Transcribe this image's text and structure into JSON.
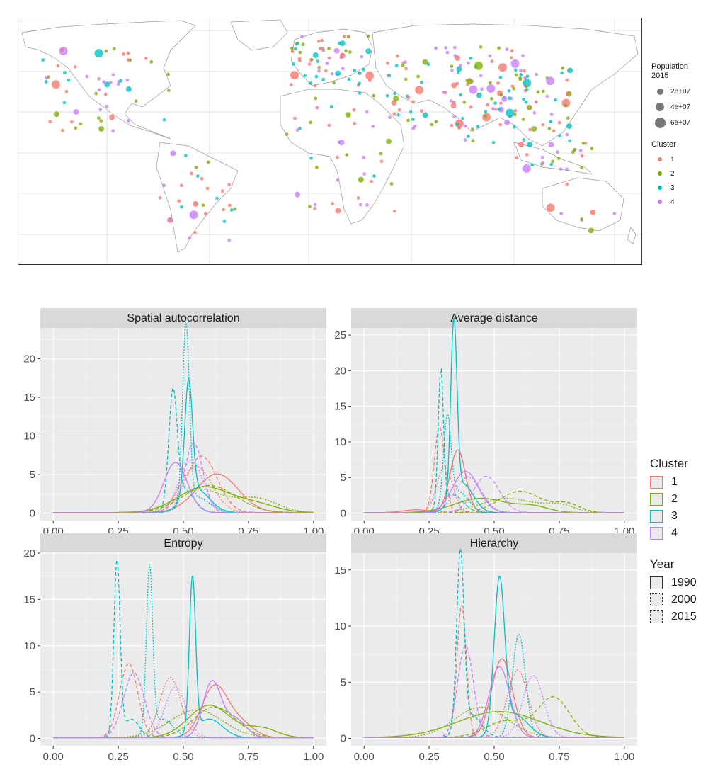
{
  "map": {
    "legend_population": {
      "title": "Population\n2015",
      "items": [
        {
          "label": "2e+07",
          "value": 20000000
        },
        {
          "label": "4e+07",
          "value": 40000000
        },
        {
          "label": "6e+07",
          "value": 60000000
        }
      ]
    },
    "legend_cluster": {
      "title": "Cluster",
      "items": [
        {
          "label": "1",
          "color": "#F8766D"
        },
        {
          "label": "2",
          "color": "#7CAE00"
        },
        {
          "label": "3",
          "color": "#00BFC4"
        },
        {
          "label": "4",
          "color": "#C77CFF"
        }
      ]
    }
  },
  "legend": {
    "cluster_title": "Cluster",
    "clusters": [
      {
        "label": "1",
        "color": "#F8766D"
      },
      {
        "label": "2",
        "color": "#7CAE00"
      },
      {
        "label": "3",
        "color": "#00BFC4"
      },
      {
        "label": "4",
        "color": "#C77CFF"
      }
    ],
    "year_title": "Year",
    "years": [
      {
        "label": "1990",
        "linetype": "solid"
      },
      {
        "label": "2000",
        "linetype": "dotted"
      },
      {
        "label": "2015",
        "linetype": "dashed"
      }
    ]
  },
  "chart_data": [
    {
      "type": "line",
      "title": "Spatial autocorrelation",
      "xlim": [
        0,
        1
      ],
      "ylim": [
        0,
        24
      ],
      "x_ticks": [
        "0.00",
        "0.25",
        "0.50",
        "0.75",
        "1.00"
      ],
      "y_ticks": [
        "0",
        "5",
        "10",
        "15",
        "20"
      ],
      "curves": [
        {
          "cluster": 1,
          "year": "1990",
          "peaks": [
            [
              0.63,
              5.0,
              0.08
            ]
          ]
        },
        {
          "cluster": 1,
          "year": "2000",
          "peaks": [
            [
              0.55,
              6.0,
              0.06
            ]
          ]
        },
        {
          "cluster": 1,
          "year": "2015",
          "peaks": [
            [
              0.57,
              7.3,
              0.06
            ]
          ]
        },
        {
          "cluster": 2,
          "year": "1990",
          "peaks": [
            [
              0.58,
              3.3,
              0.1
            ],
            [
              0.78,
              1.0,
              0.08
            ]
          ]
        },
        {
          "cluster": 2,
          "year": "2000",
          "peaks": [
            [
              0.56,
              3.0,
              0.09
            ],
            [
              0.78,
              1.8,
              0.08
            ]
          ]
        },
        {
          "cluster": 2,
          "year": "2015",
          "peaks": [
            [
              0.6,
              3.5,
              0.1
            ]
          ]
        },
        {
          "cluster": 3,
          "year": "1990",
          "peaks": [
            [
              0.52,
              14.8,
              0.015
            ],
            [
              0.55,
              3.0,
              0.05
            ]
          ]
        },
        {
          "cluster": 3,
          "year": "2000",
          "peaks": [
            [
              0.51,
              23.3,
              0.013
            ],
            [
              0.55,
              2.0,
              0.05
            ]
          ]
        },
        {
          "cluster": 3,
          "year": "2015",
          "peaks": [
            [
              0.46,
              14.3,
              0.016
            ],
            [
              0.5,
              3.0,
              0.04
            ]
          ]
        },
        {
          "cluster": 4,
          "year": "1990",
          "peaks": [
            [
              0.47,
              6.5,
              0.045
            ]
          ]
        },
        {
          "cluster": 4,
          "year": "2000",
          "peaks": [
            [
              0.53,
              6.8,
              0.045
            ]
          ]
        },
        {
          "cluster": 4,
          "year": "2015",
          "peaks": [
            [
              0.54,
              9.0,
              0.035
            ]
          ]
        }
      ]
    },
    {
      "type": "line",
      "title": "Average distance",
      "xlim": [
        0,
        1
      ],
      "ylim": [
        0,
        26
      ],
      "x_ticks": [
        "0.00",
        "0.25",
        "0.50",
        "0.75",
        "1.00"
      ],
      "y_ticks": [
        "0",
        "5",
        "10",
        "15",
        "20",
        "25"
      ],
      "curves": [
        {
          "cluster": 1,
          "year": "1990",
          "peaks": [
            [
              0.36,
              8.8,
              0.03
            ],
            [
              0.2,
              0.4,
              0.05
            ]
          ]
        },
        {
          "cluster": 1,
          "year": "2000",
          "peaks": [
            [
              0.31,
              6.5,
              0.03
            ]
          ]
        },
        {
          "cluster": 1,
          "year": "2015",
          "peaks": [
            [
              0.29,
              12.0,
              0.02
            ]
          ]
        },
        {
          "cluster": 2,
          "year": "1990",
          "peaks": [
            [
              0.45,
              2.0,
              0.1
            ],
            [
              0.65,
              0.8,
              0.06
            ]
          ]
        },
        {
          "cluster": 2,
          "year": "2000",
          "peaks": [
            [
              0.55,
              2.0,
              0.1
            ],
            [
              0.75,
              1.0,
              0.06
            ]
          ]
        },
        {
          "cluster": 2,
          "year": "2015",
          "peaks": [
            [
              0.6,
              3.0,
              0.08
            ],
            [
              0.78,
              1.2,
              0.05
            ]
          ]
        },
        {
          "cluster": 3,
          "year": "1990",
          "peaks": [
            [
              0.345,
              24.7,
              0.012
            ],
            [
              0.38,
              4.0,
              0.04
            ]
          ]
        },
        {
          "cluster": 3,
          "year": "2000",
          "peaks": [
            [
              0.32,
              12.0,
              0.014
            ],
            [
              0.36,
              3.0,
              0.04
            ]
          ]
        },
        {
          "cluster": 3,
          "year": "2015",
          "peaks": [
            [
              0.295,
              19.0,
              0.01
            ],
            [
              0.34,
              2.5,
              0.04
            ]
          ]
        },
        {
          "cluster": 4,
          "year": "1990",
          "peaks": [
            [
              0.39,
              5.8,
              0.05
            ]
          ]
        },
        {
          "cluster": 4,
          "year": "2000",
          "peaks": [
            [
              0.4,
              5.0,
              0.05
            ]
          ]
        },
        {
          "cluster": 4,
          "year": "2015",
          "peaks": [
            [
              0.47,
              5.1,
              0.05
            ]
          ]
        }
      ]
    },
    {
      "type": "line",
      "title": "Entropy",
      "xlim": [
        0,
        1
      ],
      "ylim": [
        0,
        20
      ],
      "x_ticks": [
        "0.00",
        "0.25",
        "0.50",
        "0.75",
        "1.00"
      ],
      "y_ticks": [
        "0",
        "5",
        "10",
        "15",
        "20"
      ],
      "curves": [
        {
          "cluster": 1,
          "year": "1990",
          "peaks": [
            [
              0.62,
              5.5,
              0.05
            ],
            [
              0.72,
              1.5,
              0.05
            ]
          ]
        },
        {
          "cluster": 1,
          "year": "2000",
          "peaks": [
            [
              0.45,
              6.5,
              0.04
            ]
          ]
        },
        {
          "cluster": 1,
          "year": "2015",
          "peaks": [
            [
              0.29,
              8.0,
              0.035
            ]
          ]
        },
        {
          "cluster": 2,
          "year": "1990",
          "peaks": [
            [
              0.6,
              3.5,
              0.08
            ],
            [
              0.8,
              1.0,
              0.06
            ]
          ]
        },
        {
          "cluster": 2,
          "year": "2000",
          "peaks": [
            [
              0.55,
              3.0,
              0.1
            ]
          ]
        },
        {
          "cluster": 2,
          "year": "2015",
          "peaks": [
            [
              0.62,
              3.3,
              0.08
            ]
          ]
        },
        {
          "cluster": 3,
          "year": "1990",
          "peaks": [
            [
              0.535,
              16.7,
              0.012
            ],
            [
              0.6,
              2.0,
              0.05
            ]
          ]
        },
        {
          "cluster": 3,
          "year": "2000",
          "peaks": [
            [
              0.37,
              17.8,
              0.012
            ],
            [
              0.42,
              2.0,
              0.04
            ]
          ]
        },
        {
          "cluster": 3,
          "year": "2015",
          "peaks": [
            [
              0.245,
              18.9,
              0.012
            ],
            [
              0.3,
              2.0,
              0.03
            ]
          ]
        },
        {
          "cluster": 4,
          "year": "1990",
          "peaks": [
            [
              0.61,
              6.0,
              0.035
            ],
            [
              0.7,
              2.0,
              0.04
            ]
          ]
        },
        {
          "cluster": 4,
          "year": "2000",
          "peaks": [
            [
              0.47,
              5.5,
              0.04
            ]
          ]
        },
        {
          "cluster": 4,
          "year": "2015",
          "peaks": [
            [
              0.31,
              7.0,
              0.04
            ]
          ]
        }
      ]
    },
    {
      "type": "line",
      "title": "Hierarchy",
      "xlim": [
        0,
        1
      ],
      "ylim": [
        0,
        16.5
      ],
      "x_ticks": [
        "0.00",
        "0.25",
        "0.50",
        "0.75",
        "1.00"
      ],
      "y_ticks": [
        "0",
        "5",
        "10",
        "15"
      ],
      "curves": [
        {
          "cluster": 1,
          "year": "1990",
          "peaks": [
            [
              0.53,
              7.0,
              0.04
            ]
          ]
        },
        {
          "cluster": 1,
          "year": "2000",
          "peaks": [
            [
              0.59,
              6.0,
              0.04
            ]
          ]
        },
        {
          "cluster": 1,
          "year": "2015",
          "peaks": [
            [
              0.375,
              11.8,
              0.018
            ]
          ]
        },
        {
          "cluster": 2,
          "year": "1990",
          "peaks": [
            [
              0.52,
              2.3,
              0.16
            ]
          ]
        },
        {
          "cluster": 2,
          "year": "2000",
          "peaks": [
            [
              0.45,
              2.7,
              0.1
            ]
          ]
        },
        {
          "cluster": 2,
          "year": "2015",
          "peaks": [
            [
              0.73,
              3.5,
              0.06
            ],
            [
              0.55,
              1.5,
              0.08
            ]
          ]
        },
        {
          "cluster": 3,
          "year": "1990",
          "peaks": [
            [
              0.52,
              13.4,
              0.02
            ],
            [
              0.58,
              2.0,
              0.05
            ]
          ]
        },
        {
          "cluster": 3,
          "year": "2000",
          "peaks": [
            [
              0.595,
              9.2,
              0.025
            ]
          ]
        },
        {
          "cluster": 3,
          "year": "2015",
          "peaks": [
            [
              0.37,
              15.6,
              0.014
            ],
            [
              0.41,
              2.0,
              0.04
            ]
          ]
        },
        {
          "cluster": 4,
          "year": "1990",
          "peaks": [
            [
              0.52,
              6.3,
              0.04
            ]
          ]
        },
        {
          "cluster": 4,
          "year": "2000",
          "peaks": [
            [
              0.65,
              5.5,
              0.04
            ]
          ]
        },
        {
          "cluster": 4,
          "year": "2015",
          "peaks": [
            [
              0.39,
              8.2,
              0.03
            ]
          ]
        }
      ]
    }
  ]
}
